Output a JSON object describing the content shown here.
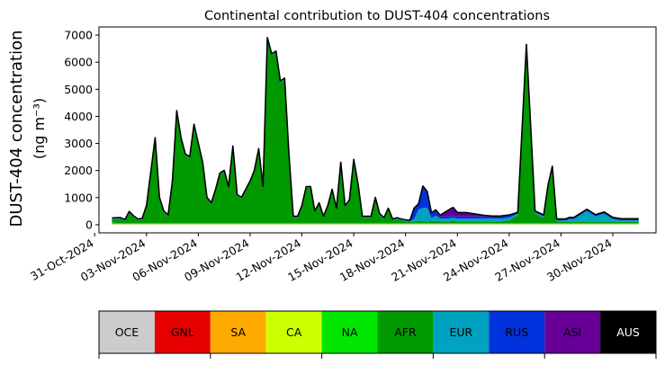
{
  "chart_data": {
    "type": "area",
    "stacked": true,
    "title": "Continental contribution to DUST-404 concentrations",
    "ylabel_line1": "DUST-404 concentration",
    "ylabel_line2": "(ng m⁻³)",
    "xlabel": "",
    "ylim": [
      -300,
      7300
    ],
    "xlim": [
      "2024-10-31T06:00",
      "2024-12-02T12:00"
    ],
    "y_ticks": [
      0,
      1000,
      2000,
      3000,
      4000,
      5000,
      6000,
      7000
    ],
    "x_ticks": [
      "2024-10-31",
      "2024-11-03",
      "2024-11-06",
      "2024-11-09",
      "2024-11-12",
      "2024-11-15",
      "2024-11-18",
      "2024-11-21",
      "2024-11-24",
      "2024-11-27",
      "2024-11-30"
    ],
    "x_tick_labels": [
      "31-Oct-2024",
      "03-Nov-2024",
      "06-Nov-2024",
      "09-Nov-2024",
      "12-Nov-2024",
      "15-Nov-2024",
      "18-Nov-2024",
      "21-Nov-2024",
      "24-Nov-2024",
      "27-Nov-2024",
      "30-Nov-2024"
    ],
    "grid": false,
    "legend_placement": "bottom colorbar",
    "total_line_color": "#000000",
    "x": [
      "2024-11-01T00:00",
      "2024-11-01T12:00",
      "2024-11-01T18:00",
      "2024-11-02T00:00",
      "2024-11-02T06:00",
      "2024-11-02T12:00",
      "2024-11-02T18:00",
      "2024-11-03T00:00",
      "2024-11-03T12:00",
      "2024-11-03T18:00",
      "2024-11-04T00:00",
      "2024-11-04T06:00",
      "2024-11-04T12:00",
      "2024-11-04T18:00",
      "2024-11-05T00:00",
      "2024-11-05T06:00",
      "2024-11-05T12:00",
      "2024-11-05T18:00",
      "2024-11-06T00:00",
      "2024-11-06T06:00",
      "2024-11-06T12:00",
      "2024-11-06T18:00",
      "2024-11-07T00:00",
      "2024-11-07T06:00",
      "2024-11-07T12:00",
      "2024-11-07T18:00",
      "2024-11-08T00:00",
      "2024-11-08T06:00",
      "2024-11-08T12:00",
      "2024-11-08T18:00",
      "2024-11-09T00:00",
      "2024-11-09T06:00",
      "2024-11-09T12:00",
      "2024-11-09T18:00",
      "2024-11-10T00:00",
      "2024-11-10T06:00",
      "2024-11-10T12:00",
      "2024-11-10T18:00",
      "2024-11-11T00:00",
      "2024-11-11T06:00",
      "2024-11-11T12:00",
      "2024-11-11T18:00",
      "2024-11-12T00:00",
      "2024-11-12T06:00",
      "2024-11-12T12:00",
      "2024-11-12T18:00",
      "2024-11-13T00:00",
      "2024-11-13T06:00",
      "2024-11-13T12:00",
      "2024-11-13T18:00",
      "2024-11-14T00:00",
      "2024-11-14T06:00",
      "2024-11-14T12:00",
      "2024-11-14T18:00",
      "2024-11-15T00:00",
      "2024-11-15T06:00",
      "2024-11-15T12:00",
      "2024-11-15T18:00",
      "2024-11-16T00:00",
      "2024-11-16T06:00",
      "2024-11-16T12:00",
      "2024-11-16T18:00",
      "2024-11-17T00:00",
      "2024-11-17T06:00",
      "2024-11-17T12:00",
      "2024-11-17T18:00",
      "2024-11-18T00:00",
      "2024-11-18T06:00",
      "2024-11-18T12:00",
      "2024-11-18T18:00",
      "2024-11-19T00:00",
      "2024-11-19T06:00",
      "2024-11-19T12:00",
      "2024-11-19T18:00",
      "2024-11-20T00:00",
      "2024-11-20T06:00",
      "2024-11-20T12:00",
      "2024-11-20T18:00",
      "2024-11-21T00:00",
      "2024-11-21T12:00",
      "2024-11-22T00:00",
      "2024-11-22T12:00",
      "2024-11-23T00:00",
      "2024-11-23T12:00",
      "2024-11-24T00:00",
      "2024-11-24T12:00",
      "2024-11-25T00:00",
      "2024-11-25T12:00",
      "2024-11-26T00:00",
      "2024-11-26T06:00",
      "2024-11-26T12:00",
      "2024-11-26T18:00",
      "2024-11-27T00:00",
      "2024-11-27T06:00",
      "2024-11-27T12:00",
      "2024-11-27T18:00",
      "2024-11-28T00:00",
      "2024-11-28T12:00",
      "2024-11-29T00:00",
      "2024-11-29T12:00",
      "2024-11-30T00:00",
      "2024-11-30T12:00",
      "2024-12-01T00:00",
      "2024-12-01T12:00"
    ],
    "series": [
      {
        "name": "OCE",
        "color": "#cccccc",
        "values": [
          20,
          20,
          20,
          20,
          20,
          20,
          20,
          20,
          20,
          20,
          20,
          20,
          20,
          20,
          20,
          20,
          20,
          20,
          20,
          20,
          20,
          20,
          20,
          20,
          20,
          20,
          20,
          20,
          20,
          20,
          20,
          20,
          20,
          20,
          20,
          20,
          20,
          20,
          20,
          20,
          20,
          20,
          20,
          20,
          20,
          20,
          20,
          20,
          20,
          20,
          20,
          20,
          20,
          20,
          20,
          20,
          20,
          20,
          20,
          20,
          20,
          20,
          20,
          20,
          20,
          20,
          20,
          20,
          20,
          20,
          20,
          20,
          20,
          20,
          20,
          20,
          20,
          20,
          20,
          20,
          20,
          20,
          20,
          20,
          20,
          20,
          20,
          20,
          20,
          20,
          20,
          20,
          20,
          20,
          20,
          20,
          20,
          20,
          20,
          20,
          20,
          20,
          20,
          20
        ]
      },
      {
        "name": "GNL",
        "color": "#e60000",
        "values": [
          0,
          0,
          0,
          0,
          0,
          0,
          0,
          0,
          0,
          0,
          0,
          0,
          0,
          0,
          0,
          0,
          0,
          0,
          0,
          0,
          0,
          0,
          0,
          0,
          0,
          0,
          0,
          0,
          0,
          0,
          0,
          0,
          0,
          0,
          0,
          0,
          0,
          0,
          0,
          0,
          0,
          0,
          0,
          0,
          0,
          0,
          0,
          0,
          0,
          0,
          0,
          0,
          0,
          0,
          0,
          0,
          0,
          0,
          0,
          0,
          0,
          0,
          0,
          0,
          0,
          0,
          0,
          0,
          0,
          0,
          0,
          0,
          0,
          0,
          0,
          0,
          0,
          0,
          0,
          0,
          0,
          0,
          0,
          0,
          0,
          0,
          0,
          0,
          0,
          0,
          0,
          0,
          0,
          0,
          0,
          0,
          0,
          0,
          0,
          0,
          0,
          0,
          0,
          0
        ]
      },
      {
        "name": "SA",
        "color": "#ffaa00",
        "values": [
          0,
          0,
          0,
          0,
          0,
          0,
          0,
          0,
          0,
          0,
          0,
          0,
          0,
          0,
          0,
          0,
          0,
          0,
          0,
          0,
          0,
          0,
          0,
          0,
          0,
          0,
          0,
          0,
          0,
          0,
          0,
          0,
          0,
          0,
          0,
          0,
          0,
          0,
          0,
          0,
          0,
          0,
          0,
          0,
          0,
          0,
          0,
          0,
          0,
          0,
          0,
          0,
          0,
          0,
          0,
          0,
          0,
          0,
          0,
          0,
          0,
          0,
          0,
          0,
          0,
          0,
          0,
          0,
          0,
          0,
          0,
          0,
          0,
          0,
          0,
          0,
          0,
          0,
          0,
          0,
          0,
          0,
          0,
          0,
          0,
          0,
          0,
          0,
          0,
          0,
          0,
          0,
          0,
          0,
          0,
          0,
          0,
          0,
          0,
          0,
          0,
          0,
          0,
          0
        ]
      },
      {
        "name": "CA",
        "color": "#ccff00",
        "values": [
          10,
          10,
          10,
          10,
          10,
          10,
          10,
          10,
          10,
          10,
          10,
          10,
          10,
          10,
          10,
          10,
          10,
          10,
          10,
          10,
          10,
          10,
          10,
          10,
          10,
          10,
          10,
          10,
          10,
          10,
          10,
          10,
          10,
          10,
          10,
          10,
          10,
          10,
          10,
          10,
          10,
          10,
          10,
          10,
          10,
          10,
          10,
          10,
          10,
          10,
          10,
          10,
          10,
          10,
          10,
          10,
          10,
          10,
          10,
          10,
          10,
          10,
          10,
          10,
          10,
          10,
          10,
          10,
          10,
          10,
          10,
          10,
          10,
          10,
          10,
          10,
          10,
          10,
          10,
          10,
          10,
          10,
          10,
          10,
          10,
          10,
          10,
          10,
          10,
          10,
          10,
          10,
          10,
          10,
          10,
          10,
          10,
          10,
          10,
          10,
          10,
          10,
          10,
          10
        ]
      },
      {
        "name": "NA",
        "color": "#00e600",
        "values": [
          50,
          30,
          30,
          30,
          30,
          30,
          30,
          30,
          30,
          30,
          30,
          30,
          30,
          30,
          30,
          30,
          30,
          30,
          30,
          30,
          30,
          30,
          30,
          30,
          30,
          30,
          30,
          30,
          30,
          30,
          30,
          30,
          30,
          30,
          30,
          30,
          30,
          30,
          30,
          30,
          30,
          30,
          30,
          30,
          30,
          30,
          30,
          30,
          30,
          30,
          30,
          30,
          30,
          30,
          30,
          30,
          30,
          30,
          30,
          30,
          30,
          30,
          30,
          30,
          30,
          30,
          30,
          30,
          30,
          30,
          30,
          30,
          30,
          30,
          30,
          30,
          30,
          30,
          30,
          30,
          30,
          30,
          30,
          30,
          30,
          30,
          30,
          30,
          30,
          30,
          30,
          30,
          30,
          30,
          30,
          30,
          30,
          30,
          30,
          30,
          30,
          30,
          30,
          30
        ]
      },
      {
        "name": "AFR",
        "color": "#009900",
        "values": [
          120,
          150,
          80,
          380,
          220,
          100,
          120,
          600,
          3100,
          900,
          400,
          250,
          1500,
          4100,
          3100,
          2500,
          2400,
          3600,
          2900,
          2200,
          900,
          700,
          1200,
          1800,
          1900,
          1300,
          2800,
          1000,
          900,
          1200,
          1500,
          1900,
          2700,
          1300,
          6800,
          6200,
          6300,
          5200,
          5300,
          2500,
          200,
          200,
          600,
          1300,
          1300,
          400,
          700,
          200,
          600,
          1200,
          500,
          2200,
          600,
          800,
          2300,
          1400,
          200,
          200,
          200,
          900,
          300,
          150,
          500,
          100,
          150,
          100,
          70,
          50,
          50,
          100,
          60,
          60,
          70,
          80,
          60,
          60,
          60,
          100,
          60,
          60,
          60,
          60,
          60,
          60,
          100,
          300,
          6500,
          350,
          200,
          1300,
          2000,
          50,
          50,
          50,
          50,
          50,
          50,
          50,
          50,
          50,
          50,
          50,
          50,
          50
        ]
      },
      {
        "name": "EUR",
        "color": "#00a3bf",
        "values": [
          20,
          20,
          20,
          20,
          20,
          20,
          20,
          20,
          20,
          20,
          20,
          20,
          20,
          20,
          20,
          20,
          20,
          20,
          20,
          20,
          20,
          20,
          20,
          20,
          20,
          20,
          20,
          20,
          20,
          20,
          20,
          20,
          20,
          20,
          20,
          20,
          20,
          20,
          20,
          20,
          20,
          20,
          20,
          20,
          20,
          20,
          20,
          20,
          20,
          20,
          20,
          20,
          20,
          20,
          20,
          20,
          20,
          20,
          20,
          20,
          20,
          20,
          20,
          20,
          20,
          20,
          20,
          20,
          100,
          400,
          500,
          500,
          100,
          200,
          100,
          100,
          100,
          100,
          100,
          100,
          100,
          100,
          100,
          100,
          100,
          40,
          40,
          40,
          40,
          40,
          40,
          40,
          40,
          40,
          100,
          100,
          200,
          400,
          200,
          300,
          100,
          50,
          50,
          50
        ]
      },
      {
        "name": "RUS",
        "color": "#0033dd",
        "values": [
          20,
          20,
          20,
          20,
          20,
          20,
          20,
          20,
          20,
          20,
          20,
          20,
          20,
          20,
          20,
          20,
          20,
          20,
          20,
          20,
          20,
          20,
          20,
          20,
          20,
          20,
          20,
          20,
          20,
          20,
          20,
          20,
          20,
          20,
          20,
          20,
          20,
          20,
          20,
          20,
          20,
          20,
          20,
          20,
          20,
          20,
          20,
          20,
          20,
          20,
          20,
          20,
          20,
          20,
          20,
          20,
          20,
          20,
          20,
          20,
          20,
          20,
          20,
          20,
          20,
          20,
          20,
          20,
          400,
          200,
          800,
          600,
          200,
          200,
          80,
          80,
          80,
          80,
          80,
          80,
          80,
          80,
          80,
          80,
          80,
          40,
          40,
          40,
          40,
          40,
          40,
          40,
          40,
          40,
          40,
          40,
          40,
          40,
          40,
          40,
          40,
          40,
          40,
          40
        ]
      },
      {
        "name": "ASI",
        "color": "#660099",
        "values": [
          10,
          10,
          10,
          10,
          10,
          10,
          10,
          10,
          10,
          10,
          10,
          10,
          10,
          10,
          10,
          10,
          10,
          10,
          10,
          10,
          10,
          10,
          10,
          10,
          10,
          10,
          10,
          10,
          10,
          10,
          10,
          10,
          10,
          10,
          10,
          10,
          10,
          10,
          10,
          10,
          10,
          10,
          10,
          10,
          10,
          10,
          10,
          10,
          10,
          10,
          10,
          10,
          10,
          10,
          10,
          10,
          10,
          10,
          10,
          10,
          10,
          10,
          10,
          10,
          10,
          10,
          10,
          10,
          10,
          10,
          10,
          10,
          10,
          10,
          50,
          150,
          250,
          300,
          150,
          150,
          100,
          50,
          20,
          20,
          20,
          20,
          20,
          20,
          20,
          20,
          20,
          20,
          20,
          20,
          20,
          20,
          20,
          20,
          20,
          20,
          20,
          20,
          20,
          20
        ]
      },
      {
        "name": "AUS",
        "color": "#000000",
        "values": [
          0,
          0,
          0,
          0,
          0,
          0,
          0,
          0,
          0,
          0,
          0,
          0,
          0,
          0,
          0,
          0,
          0,
          0,
          0,
          0,
          0,
          0,
          0,
          0,
          0,
          0,
          0,
          0,
          0,
          0,
          0,
          0,
          0,
          0,
          0,
          0,
          0,
          0,
          0,
          0,
          0,
          0,
          0,
          0,
          0,
          0,
          0,
          0,
          0,
          0,
          0,
          0,
          0,
          0,
          0,
          0,
          0,
          0,
          0,
          0,
          0,
          0,
          0,
          0,
          0,
          0,
          0,
          0,
          0,
          0,
          0,
          0,
          0,
          0,
          0,
          0,
          0,
          0,
          0,
          0,
          0,
          0,
          0,
          0,
          0,
          0,
          0,
          0,
          0,
          0,
          0,
          0,
          0,
          0,
          0,
          0,
          0,
          0,
          0,
          0,
          0,
          0,
          0,
          0
        ]
      }
    ]
  }
}
